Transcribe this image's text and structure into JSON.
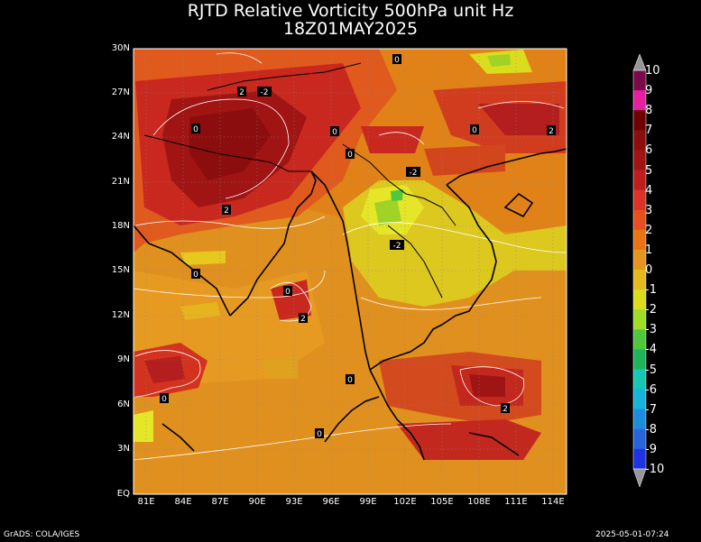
{
  "title": {
    "line1": "RJTD Relative Vorticity 500hPa unit Hz",
    "line2": "18Z01MAY2025"
  },
  "axes": {
    "lat_labels": [
      "30N",
      "27N",
      "24N",
      "21N",
      "18N",
      "15N",
      "12N",
      "9N",
      "6N",
      "3N",
      "EQ"
    ],
    "lon_labels": [
      "81E",
      "84E",
      "87E",
      "90E",
      "93E",
      "96E",
      "99E",
      "102E",
      "105E",
      "108E",
      "111E",
      "114E"
    ]
  },
  "colorbar": {
    "labels": [
      "10",
      "9",
      "8",
      "7",
      "6",
      "5",
      "4",
      "3",
      "2",
      "1",
      "0",
      "-1",
      "-2",
      "-3",
      "-4",
      "-5",
      "-6",
      "-7",
      "-8",
      "-9",
      "-10"
    ],
    "colors": [
      "#7a0a4a",
      "#e61ea0",
      "#6e0000",
      "#8c0d0d",
      "#a01414",
      "#be1e1e",
      "#dc3228",
      "#e6501e",
      "#eb7314",
      "#e6961e",
      "#e6b91e",
      "#dcdc1e",
      "#a0dc28",
      "#50c83c",
      "#1eb45a",
      "#14c8b4",
      "#14b4dc",
      "#1e8cdc",
      "#2864dc",
      "#1e32e6"
    ]
  },
  "contour_labels": [
    "0",
    "2",
    "-2",
    "0",
    "0",
    "-2",
    "2",
    "0",
    "-2",
    "0",
    "2",
    "2",
    "0",
    "0",
    "0",
    "0",
    "2",
    "0"
  ],
  "footer": {
    "left": "GrADS: COLA/IGES",
    "right": "2025-05-01-07:24"
  }
}
